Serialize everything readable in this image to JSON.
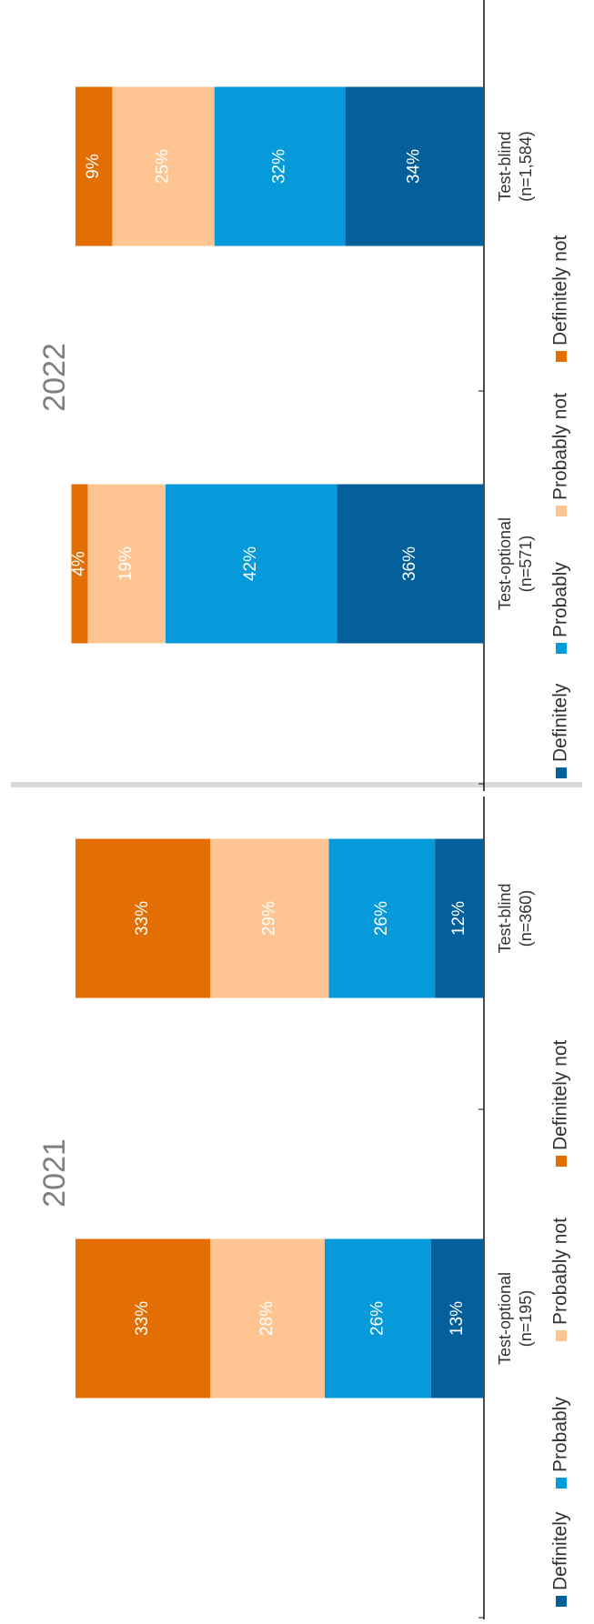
{
  "chart_data": [
    {
      "type": "bar",
      "stacked": true,
      "percent_stacked": true,
      "title": "2021",
      "categories": [
        "Test-optional\n(n=195)",
        "Test-blind\n(n=360)"
      ],
      "series": [
        {
          "name": "Definitely",
          "values": [
            13,
            12
          ],
          "labels": [
            "13%",
            "12%"
          ]
        },
        {
          "name": "Probably",
          "values": [
            26,
            26
          ],
          "labels": [
            "26%",
            "26%"
          ]
        },
        {
          "name": "Probably not",
          "values": [
            28,
            29
          ],
          "labels": [
            "28%",
            "29%"
          ]
        },
        {
          "name": "Definitely not",
          "values": [
            33,
            33
          ],
          "labels": [
            "33%",
            "33%"
          ]
        }
      ],
      "ylim": [
        0,
        100
      ],
      "legend": "bottom",
      "grid": false
    },
    {
      "type": "bar",
      "stacked": true,
      "percent_stacked": true,
      "title": "2022",
      "categories": [
        "Test-optional\n(n=571)",
        "Test-blind\n(n=1,584)"
      ],
      "series": [
        {
          "name": "Definitely",
          "values": [
            36,
            34
          ],
          "labels": [
            "36%",
            "34%"
          ]
        },
        {
          "name": "Probably",
          "values": [
            42,
            32
          ],
          "labels": [
            "42%",
            "32%"
          ]
        },
        {
          "name": "Probably not",
          "values": [
            19,
            25
          ],
          "labels": [
            "19%",
            "25%"
          ]
        },
        {
          "name": "Definitely not",
          "values": [
            4,
            9
          ],
          "labels": [
            "4%",
            "9%"
          ]
        }
      ],
      "ylim": [
        0,
        100
      ],
      "legend": "bottom",
      "grid": false
    }
  ],
  "colors": {
    "Definitely": "#04609a",
    "Probably": "#069ada",
    "Probably not": "#fec592",
    "Definitely not": "#e36f04",
    "axis": "#111111",
    "divider": "#d9d9d9",
    "title": "#7f7f7f",
    "label_text": "#ffffff",
    "category_text": "#333333"
  }
}
